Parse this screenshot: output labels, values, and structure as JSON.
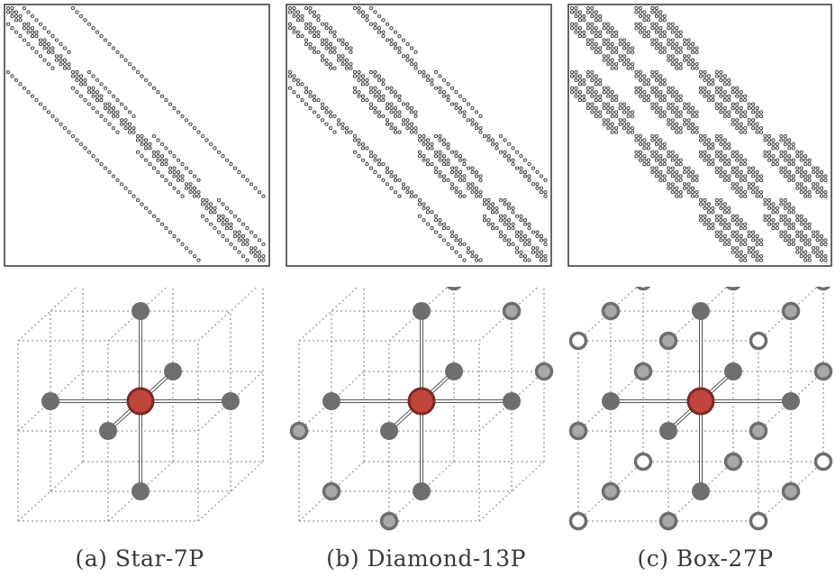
{
  "figure": {
    "panels": [
      {
        "caption": "(a) Star-7P",
        "stencil": "star",
        "legend_colors": {
          "center": "#c0453c",
          "first": "#6e6e6e",
          "second": "#a8a8a8",
          "third": "#ffffff"
        }
      },
      {
        "caption": "(b) Diamond-13P",
        "stencil": "diamond"
      },
      {
        "caption": "(c) Box-27P",
        "stencil": "box"
      }
    ],
    "colors": {
      "center_fill": "#c0453c",
      "center_ring": "#7a2a24",
      "neighbor_dark": "#6e6e6e",
      "neighbor_mid_fill": "#a8a8a8",
      "neighbor_mid_ring": "#6e6e6e",
      "neighbor_light_fill": "#ffffff",
      "neighbor_light_ring": "#6e6e6e",
      "grid": "#9a9a9a",
      "matrix_dot": "#333333"
    }
  }
}
